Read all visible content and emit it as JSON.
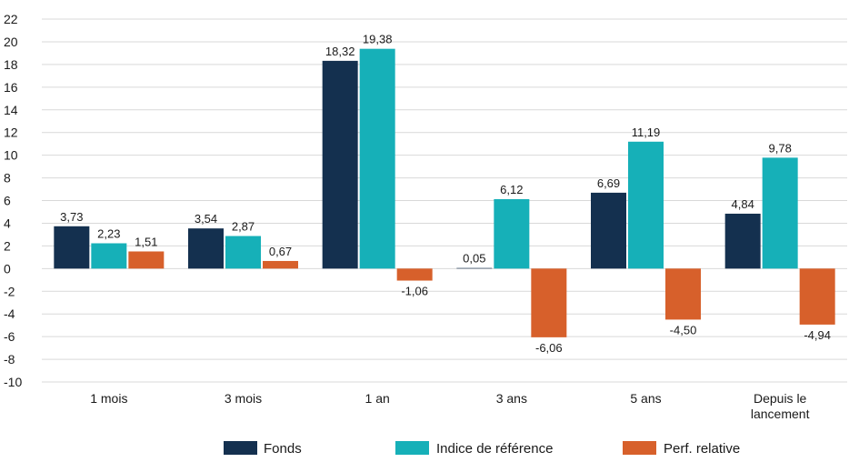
{
  "chart_data": {
    "type": "bar",
    "categories": [
      "1 mois",
      "3 mois",
      "1 an",
      "3 ans",
      "5 ans",
      "Depuis le lancement"
    ],
    "series": [
      {
        "name": "Fonds",
        "color": "#14304f",
        "values": [
          3.73,
          3.54,
          18.32,
          0.05,
          6.69,
          4.84
        ],
        "labels": [
          "3,73",
          "3,54",
          "18,32",
          "0,05",
          "6,69",
          "4,84"
        ]
      },
      {
        "name": "Indice de référence",
        "color": "#16b0b8",
        "values": [
          2.23,
          2.87,
          19.38,
          6.12,
          11.19,
          9.78
        ],
        "labels": [
          "2,23",
          "2,87",
          "19,38",
          "6,12",
          "11,19",
          "9,78"
        ]
      },
      {
        "name": "Perf. relative",
        "color": "#d7602b",
        "values": [
          1.51,
          0.67,
          -1.06,
          -6.06,
          -4.5,
          -4.94
        ],
        "labels": [
          "1,51",
          "0,67",
          "-1,06",
          "-6,06",
          "-4,50",
          "-4,94"
        ]
      }
    ],
    "ylim": [
      -10,
      22
    ],
    "yticks": [
      22,
      20,
      18,
      16,
      14,
      12,
      10,
      8,
      6,
      4,
      2,
      0,
      -2,
      -4,
      -6,
      -8,
      -10
    ],
    "grid": true,
    "legend": "bottom",
    "title": "",
    "xlabel": "",
    "ylabel": ""
  }
}
